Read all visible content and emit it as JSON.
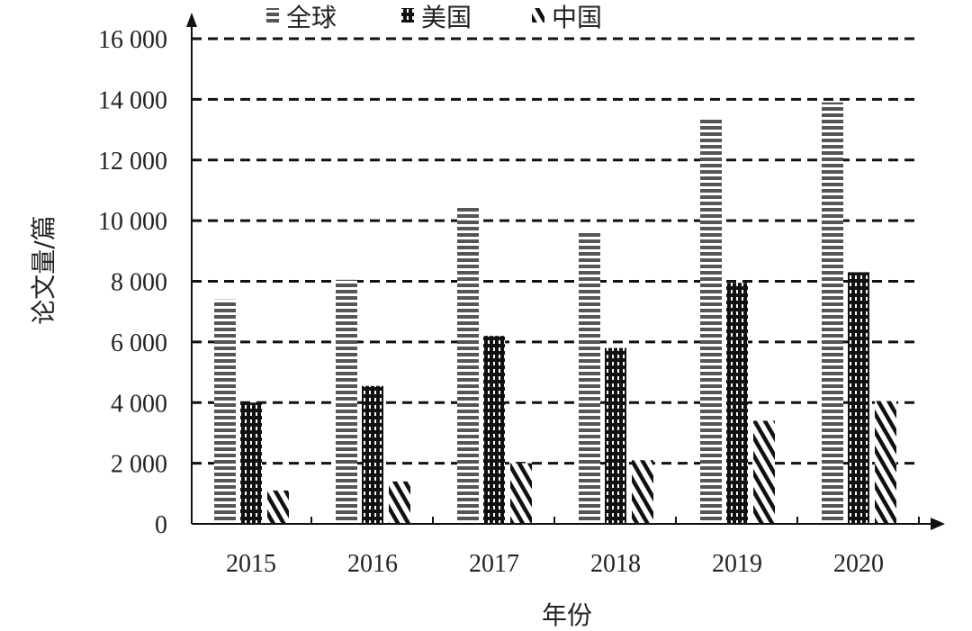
{
  "chart_data": {
    "type": "bar",
    "title": "",
    "xlabel": "年份",
    "ylabel": "论文量/篇",
    "ylim": [
      0,
      16000
    ],
    "yticks": [
      "0",
      "2 000",
      "4 000",
      "6 000",
      "8 000",
      "10 000",
      "12 000",
      "14 000",
      "16 000"
    ],
    "grid": "horizontal dashed",
    "legend_position": "top",
    "categories": [
      "2015",
      "2016",
      "2017",
      "2018",
      "2019",
      "2020"
    ],
    "series": [
      {
        "name": "全球",
        "pattern": "horizontal-stripes",
        "values": [
          7400,
          8050,
          10500,
          9650,
          13400,
          13900
        ]
      },
      {
        "name": "美国",
        "pattern": "black-dotted",
        "values": [
          4000,
          4550,
          6200,
          5800,
          7950,
          8300
        ]
      },
      {
        "name": "中国",
        "pattern": "diagonal-stripes",
        "values": [
          1100,
          1400,
          2000,
          2100,
          3400,
          4050
        ]
      }
    ]
  }
}
